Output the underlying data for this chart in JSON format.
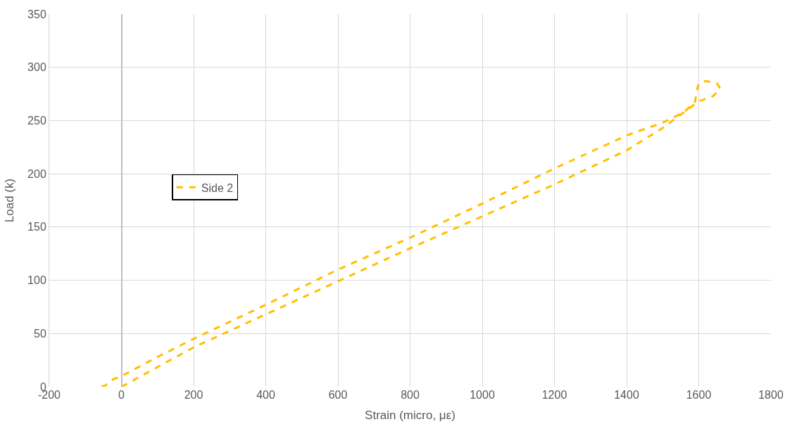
{
  "chart_data": {
    "type": "line",
    "xlabel": "Strain (micro, με)",
    "ylabel": "Load (k)",
    "xlim": [
      -200,
      1800
    ],
    "xticks": [
      -200,
      0,
      200,
      400,
      600,
      800,
      1000,
      1200,
      1400,
      1600,
      1800
    ],
    "ylim": [
      0,
      350
    ],
    "yticks": [
      0,
      50,
      100,
      150,
      200,
      250,
      300,
      350
    ],
    "grid": true,
    "legend": "left",
    "line_style": "dashed",
    "marker": "none",
    "series": [
      {
        "name": "Side 2",
        "color": "#ffc000",
        "x": [
          0,
          200,
          400,
          600,
          800,
          1000,
          1200,
          1400,
          1500,
          1560,
          1600,
          1640,
          1660,
          1650,
          1620,
          1600,
          1595,
          1590,
          1560,
          1500,
          1400,
          1200,
          1000,
          800,
          600,
          400,
          200,
          100,
          0,
          -30,
          -45,
          -60
        ],
        "values": [
          0,
          37,
          68,
          99,
          130,
          160,
          190,
          222,
          243,
          258,
          268,
          273,
          280,
          285,
          287,
          285,
          278,
          268,
          258,
          248,
          236,
          205,
          172,
          140,
          110,
          77,
          45,
          28,
          10,
          6,
          1,
          0
        ]
      }
    ]
  }
}
